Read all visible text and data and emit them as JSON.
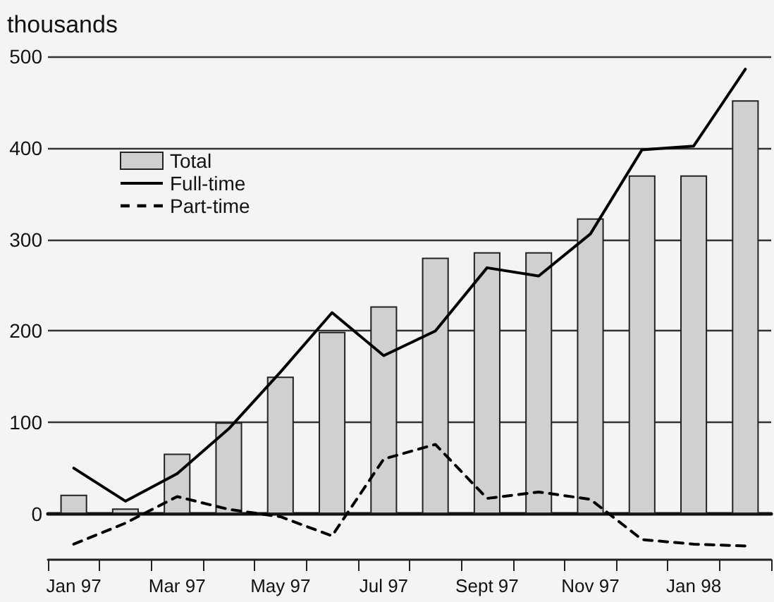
{
  "chart_data": {
    "type": "bar",
    "ylabel": "thousands",
    "categories": [
      "Jan 97",
      null,
      "Mar 97",
      null,
      "May 97",
      null,
      "Jul 97",
      null,
      "Sept 97",
      null,
      "Nov 97",
      null,
      "Jan 98",
      null
    ],
    "series": [
      {
        "name": "Total",
        "color": "#d0d0d0",
        "values": [
          21,
          6,
          66,
          100,
          150,
          199,
          227,
          280,
          286,
          286,
          323,
          370,
          370,
          452
        ]
      },
      {
        "name": "Full-time",
        "type": "line",
        "color": "#000000",
        "line_style": "solid",
        "values": [
          50,
          14,
          44,
          93,
          155,
          220,
          173,
          200,
          269,
          260,
          306,
          398,
          402,
          486
        ]
      },
      {
        "name": "Part-time",
        "type": "line",
        "color": "#000000",
        "line_style": "dashed",
        "values": [
          -33,
          -10,
          19,
          5,
          -3,
          -24,
          60,
          76,
          17,
          24,
          16,
          -28,
          -33,
          -35
        ]
      }
    ],
    "ylim": [
      -50,
      500
    ],
    "yticks": [
      0,
      100,
      200,
      300,
      400,
      500
    ],
    "grid": "y",
    "legend": "top left",
    "marker": "none"
  }
}
